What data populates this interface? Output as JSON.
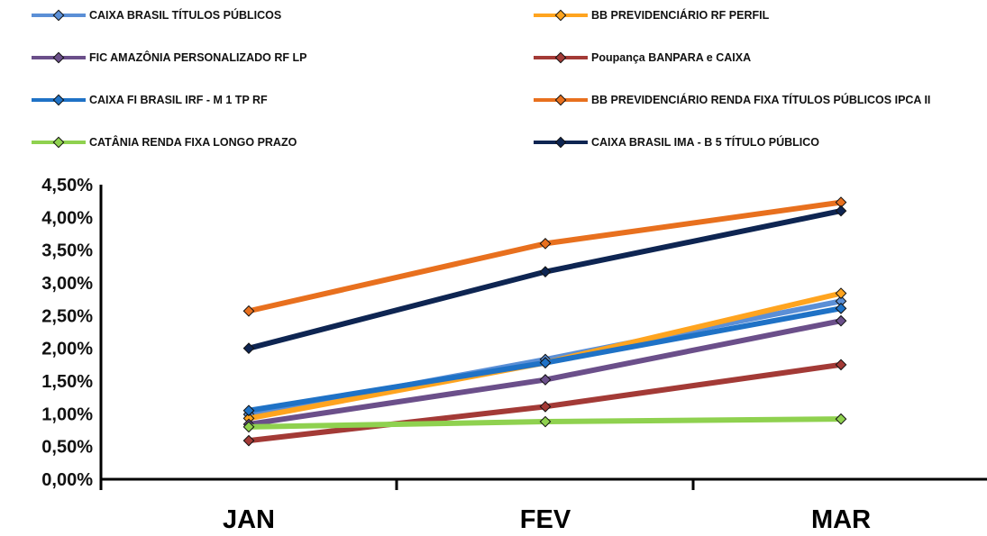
{
  "chart_data": {
    "type": "line",
    "categories": [
      "JAN",
      "FEV",
      "MAR"
    ],
    "ylim": [
      0,
      4.5
    ],
    "yticks": [
      "0,00%",
      "0,50%",
      "1,00%",
      "1,50%",
      "2,00%",
      "2,50%",
      "3,00%",
      "3,50%",
      "4,00%",
      "4,50%"
    ],
    "legend_position": "top",
    "grid": false,
    "series": [
      {
        "name": "CAIXA BRASIL TÍTULOS PÚBLICOS",
        "color": "#5b8fd6",
        "values": [
          0.99,
          1.83,
          2.72
        ]
      },
      {
        "name": "BB PREVIDENCIÁRIO RF PERFIL",
        "color": "#ffa41f",
        "values": [
          0.93,
          1.78,
          2.84
        ]
      },
      {
        "name": "FIC AMAZÔNIA PERSONALIZADO RF LP",
        "color": "#6b4f8a",
        "values": [
          0.84,
          1.52,
          2.42
        ]
      },
      {
        "name": "Poupança BANPARA e CAIXA",
        "color": "#a33a36",
        "values": [
          0.59,
          1.11,
          1.75
        ]
      },
      {
        "name": "CAIXA FI BRASIL IRF - M 1 TP RF",
        "color": "#1f72c6",
        "values": [
          1.05,
          1.78,
          2.61
        ]
      },
      {
        "name": "BB PREVIDENCIÁRIO RENDA FIXA TÍTULOS PÚBLICOS IPCA II",
        "color": "#e8701e",
        "values": [
          2.57,
          3.6,
          4.23
        ]
      },
      {
        "name": "CATÂNIA RENDA FIXA LONGO PRAZO",
        "color": "#8fd14f",
        "values": [
          0.8,
          0.88,
          0.92
        ]
      },
      {
        "name": "CAIXA BRASIL IMA - B 5 TÍTULO PÚBLICO",
        "color": "#0e2552",
        "values": [
          2.0,
          3.17,
          4.1
        ]
      }
    ]
  }
}
